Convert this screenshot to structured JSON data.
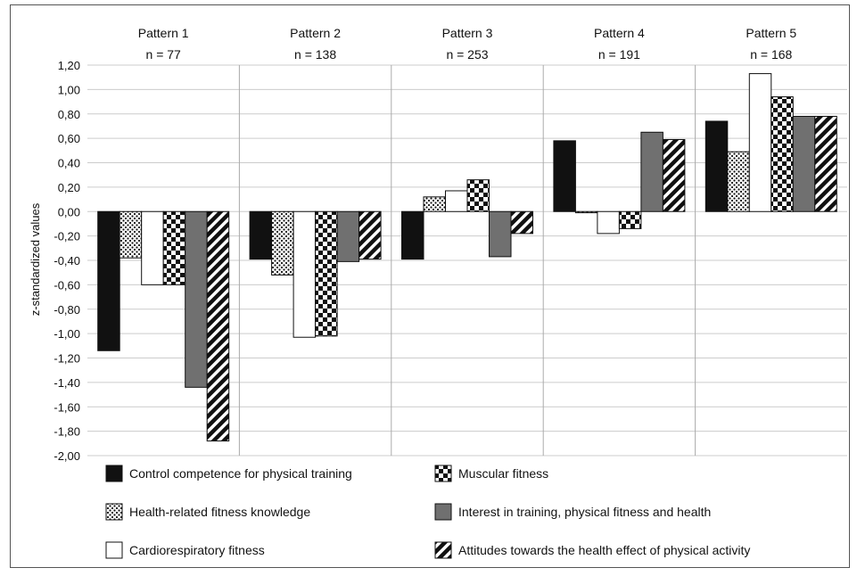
{
  "chart_data": {
    "type": "bar",
    "title": "",
    "xlabel": "",
    "ylabel": "z-standardized values",
    "ylim": [
      -2.0,
      1.2
    ],
    "ytick_step": 0.2,
    "ytick_labels": [
      "1,20",
      "1,00",
      "0,80",
      "0,60",
      "0,40",
      "0,20",
      "0,00",
      "-0,20",
      "-0,40",
      "-0,60",
      "-0,80",
      "-1,00",
      "-1,20",
      "-1,40",
      "-1,60",
      "-1,80",
      "-2,00"
    ],
    "grid": true,
    "legend_position": "bottom",
    "categories": [
      {
        "label": "Pattern 1",
        "n": "n = 77"
      },
      {
        "label": "Pattern 2",
        "n": "n = 138"
      },
      {
        "label": "Pattern 3",
        "n": "n = 253"
      },
      {
        "label": "Pattern 4",
        "n": "n = 191"
      },
      {
        "label": "Pattern 5",
        "n": "n = 168"
      }
    ],
    "series": [
      {
        "name": "Control competence for physical training",
        "fill": "solid-black",
        "values": [
          -1.14,
          -0.39,
          -0.39,
          0.58,
          0.74
        ]
      },
      {
        "name": "Health-related fitness knowledge",
        "fill": "dotted",
        "values": [
          -0.38,
          -0.52,
          0.12,
          -0.01,
          0.49
        ]
      },
      {
        "name": "Cardiorespiratory fitness",
        "fill": "white",
        "values": [
          -0.6,
          -1.03,
          0.17,
          -0.18,
          1.13
        ]
      },
      {
        "name": "Muscular fitness",
        "fill": "checkerboard",
        "values": [
          -0.6,
          -1.02,
          0.26,
          -0.14,
          0.94
        ]
      },
      {
        "name": "Interest in training, physical fitness and health",
        "fill": "solid-gray",
        "values": [
          -1.44,
          -0.41,
          -0.37,
          0.65,
          0.78
        ]
      },
      {
        "name": "Attitudes towards the health effect of physical activity",
        "fill": "diagonal-stripes",
        "values": [
          -1.88,
          -0.39,
          -0.18,
          0.59,
          0.78
        ]
      }
    ],
    "colors": {
      "black": "#111111",
      "gray": "#707070",
      "white": "#ffffff",
      "grid": "#cccccc",
      "separator": "#aaaaaa"
    }
  }
}
